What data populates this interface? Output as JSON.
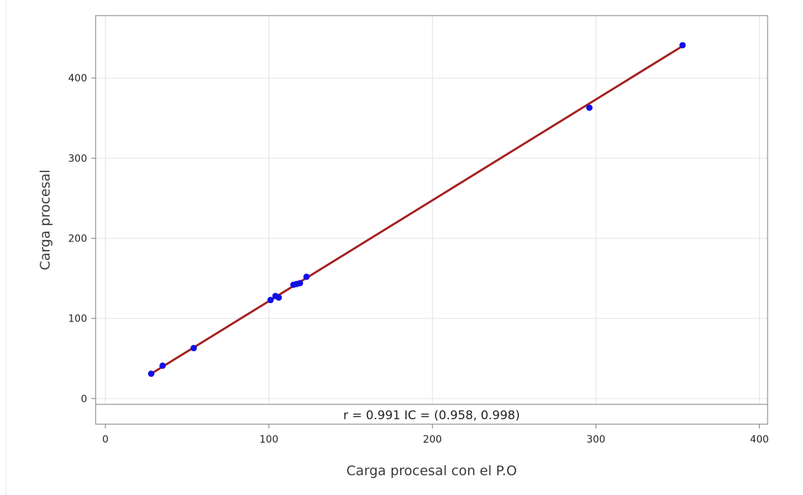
{
  "chart_data": {
    "type": "scatter",
    "xlabel": "Carga procesal con el P.O",
    "ylabel": "Carga procesal",
    "xlim": [
      -6,
      405
    ],
    "ylim": [
      -32,
      478
    ],
    "x_ticks": [
      0,
      100,
      200,
      300,
      400
    ],
    "y_ticks": [
      0,
      100,
      200,
      300,
      400
    ],
    "grid": true,
    "points": [
      {
        "x": 28,
        "y": 31
      },
      {
        "x": 35,
        "y": 41
      },
      {
        "x": 54,
        "y": 63
      },
      {
        "x": 101,
        "y": 123
      },
      {
        "x": 104,
        "y": 128
      },
      {
        "x": 106,
        "y": 126
      },
      {
        "x": 115,
        "y": 142
      },
      {
        "x": 117,
        "y": 143
      },
      {
        "x": 119,
        "y": 144
      },
      {
        "x": 123,
        "y": 152
      },
      {
        "x": 296,
        "y": 363
      },
      {
        "x": 353,
        "y": 441
      }
    ],
    "fit_line": {
      "x": [
        28,
        353
      ],
      "y": [
        31,
        440
      ]
    },
    "annotation": "r = 0.991  IC = (0.958, 0.998)",
    "colors": {
      "points": "#1010e8",
      "line": "#a52020",
      "grid": "#e3e3e3",
      "frame": "#7a7a7a"
    }
  }
}
